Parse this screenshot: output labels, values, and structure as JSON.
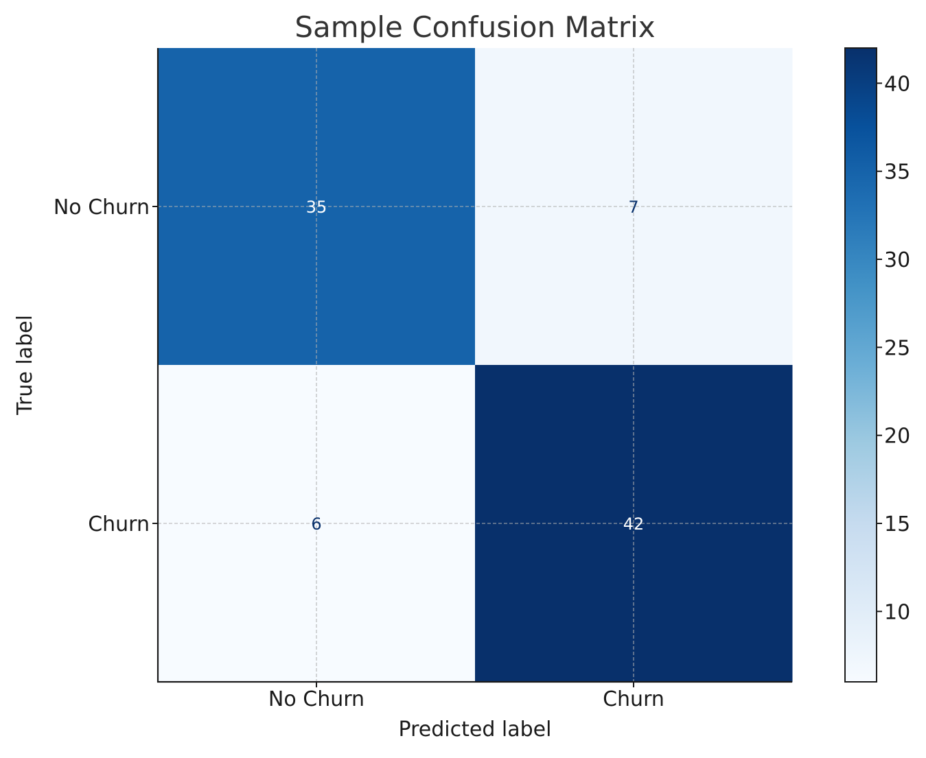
{
  "chart_data": {
    "type": "heatmap",
    "title": "Sample Confusion Matrix",
    "xlabel": "Predicted label",
    "ylabel": "True label",
    "x_categories": [
      "No Churn",
      "Churn"
    ],
    "y_categories": [
      "No Churn",
      "Churn"
    ],
    "matrix": [
      [
        35,
        7
      ],
      [
        6,
        42
      ]
    ],
    "cell_labels": [
      [
        "35",
        "7"
      ],
      [
        "6",
        "42"
      ]
    ],
    "colormap": "Blues",
    "color_range": [
      6,
      42
    ],
    "colorbar_ticks": [
      10,
      15,
      20,
      25,
      30,
      35,
      40
    ],
    "colorbar_tick_labels": [
      "10",
      "15",
      "20",
      "25",
      "30",
      "35",
      "40"
    ],
    "grid": true,
    "colors": {
      "text": "#1a1a1a",
      "title": "#333333",
      "grid": "#b0b0b0",
      "label_dark": "#08306b",
      "label_light": "#ffffff"
    }
  }
}
